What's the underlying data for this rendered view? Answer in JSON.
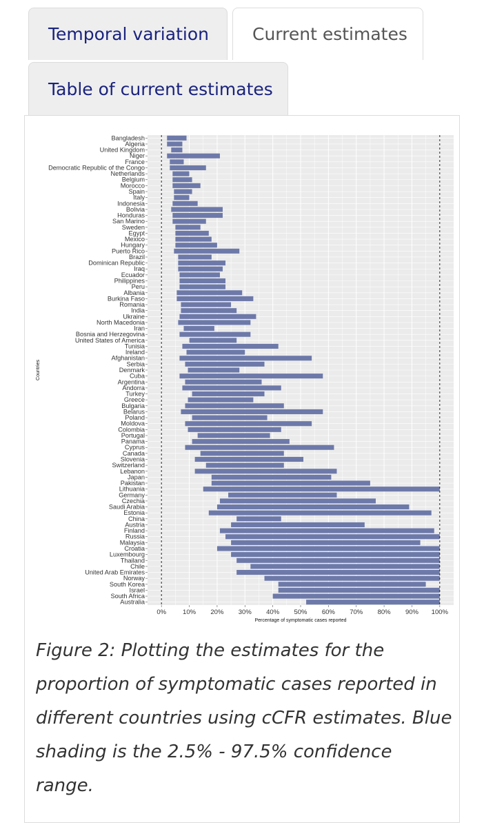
{
  "tabs": [
    {
      "label": "Temporal variation"
    },
    {
      "label": "Current estimates"
    },
    {
      "label": "Table of current estimates"
    }
  ],
  "caption": "Figure 2: Plotting the estimates for the proportion of symptomatic cases reported in different countries using cCFR estimates. Blue shading is the 2.5% - 97.5% confidence range.",
  "colors": {
    "bar": "#6d79a9",
    "panel": "#ebebeb",
    "grid": "#ffffff",
    "text": "#333333"
  },
  "chart_data": {
    "type": "bar",
    "orientation": "horizontal-range",
    "xlabel": "Percentage of symptomatic cases reported",
    "ylabel": "Countries",
    "xlim": [
      0,
      100
    ],
    "xticks": [
      "0%",
      "10%",
      "20%",
      "30%",
      "40%",
      "50%",
      "60%",
      "70%",
      "80%",
      "90%",
      "100%"
    ],
    "reference_lines": [
      0,
      100
    ],
    "series": [
      {
        "name": "2.5% - 97.5% confidence range"
      }
    ],
    "categories": [
      "Bangladesh",
      "Algeria",
      "United Kingdom",
      "Niger",
      "France",
      "Democratic Republic of the Congo",
      "Netherlands",
      "Belgium",
      "Morocco",
      "Spain",
      "Italy",
      "Indonesia",
      "Bolivia",
      "Honduras",
      "San Marino",
      "Sweden",
      "Egypt",
      "Mexico",
      "Hungary",
      "Puerto Rico",
      "Brazil",
      "Dominican Republic",
      "Iraq",
      "Ecuador",
      "Philippines",
      "Peru",
      "Albania",
      "Burkina Faso",
      "Romania",
      "India",
      "Ukraine",
      "North Macedonia",
      "Iran",
      "Bosnia and Herzegovina",
      "United States of America",
      "Tunisia",
      "Ireland",
      "Afghanistan",
      "Serbia",
      "Denmark",
      "Cuba",
      "Argentina",
      "Andorra",
      "Turkey",
      "Greece",
      "Bulgaria",
      "Belarus",
      "Poland",
      "Moldova",
      "Colombia",
      "Portugal",
      "Panama",
      "Cyprus",
      "Canada",
      "Slovenia",
      "Switzerland",
      "Lebanon",
      "Japan",
      "Pakistan",
      "Lithuania",
      "Germany",
      "Czechia",
      "Saudi Arabia",
      "Estonia",
      "China",
      "Austria",
      "Finland",
      "Russia",
      "Malaysia",
      "Croatia",
      "Luxembourg",
      "Thailand",
      "Chile",
      "United Arab Emirates",
      "Norway",
      "South Korea",
      "Israel",
      "South Africa",
      "Australia"
    ],
    "low": [
      2,
      2,
      3.5,
      2,
      3,
      3,
      4,
      4,
      4,
      4.5,
      4.5,
      4,
      3.5,
      4,
      4,
      5,
      5,
      5,
      5,
      4.5,
      6,
      6,
      6,
      6.5,
      6.5,
      6.5,
      5.5,
      5.5,
      7,
      7,
      6.5,
      6,
      8,
      6.5,
      10,
      7.5,
      9,
      6.5,
      8.5,
      9.5,
      6.5,
      8.5,
      7.5,
      11,
      9.5,
      8.5,
      7,
      11,
      8.5,
      9.5,
      13,
      11,
      8.5,
      14,
      12,
      16,
      12,
      18,
      18,
      15,
      24,
      21,
      20,
      17,
      27,
      25,
      21,
      23,
      25,
      20,
      25,
      27,
      32,
      27,
      37,
      42,
      42,
      40,
      52
    ],
    "high": [
      9,
      7.5,
      7.5,
      21,
      8,
      16,
      10,
      11,
      14,
      11,
      10,
      13,
      22,
      22,
      16,
      14,
      17,
      18,
      20,
      28,
      18,
      23,
      22,
      21,
      23,
      23,
      29,
      33,
      25,
      27,
      34,
      32,
      19,
      32,
      27,
      42,
      30,
      54,
      37,
      28,
      58,
      36,
      43,
      37,
      33,
      44,
      58,
      38,
      54,
      43,
      39,
      46,
      62,
      44,
      51,
      44,
      63,
      61,
      75,
      100,
      63,
      77,
      89,
      97,
      43,
      73,
      98,
      100,
      93,
      100,
      100,
      100,
      100,
      100,
      100,
      95,
      100,
      100,
      100
    ]
  }
}
